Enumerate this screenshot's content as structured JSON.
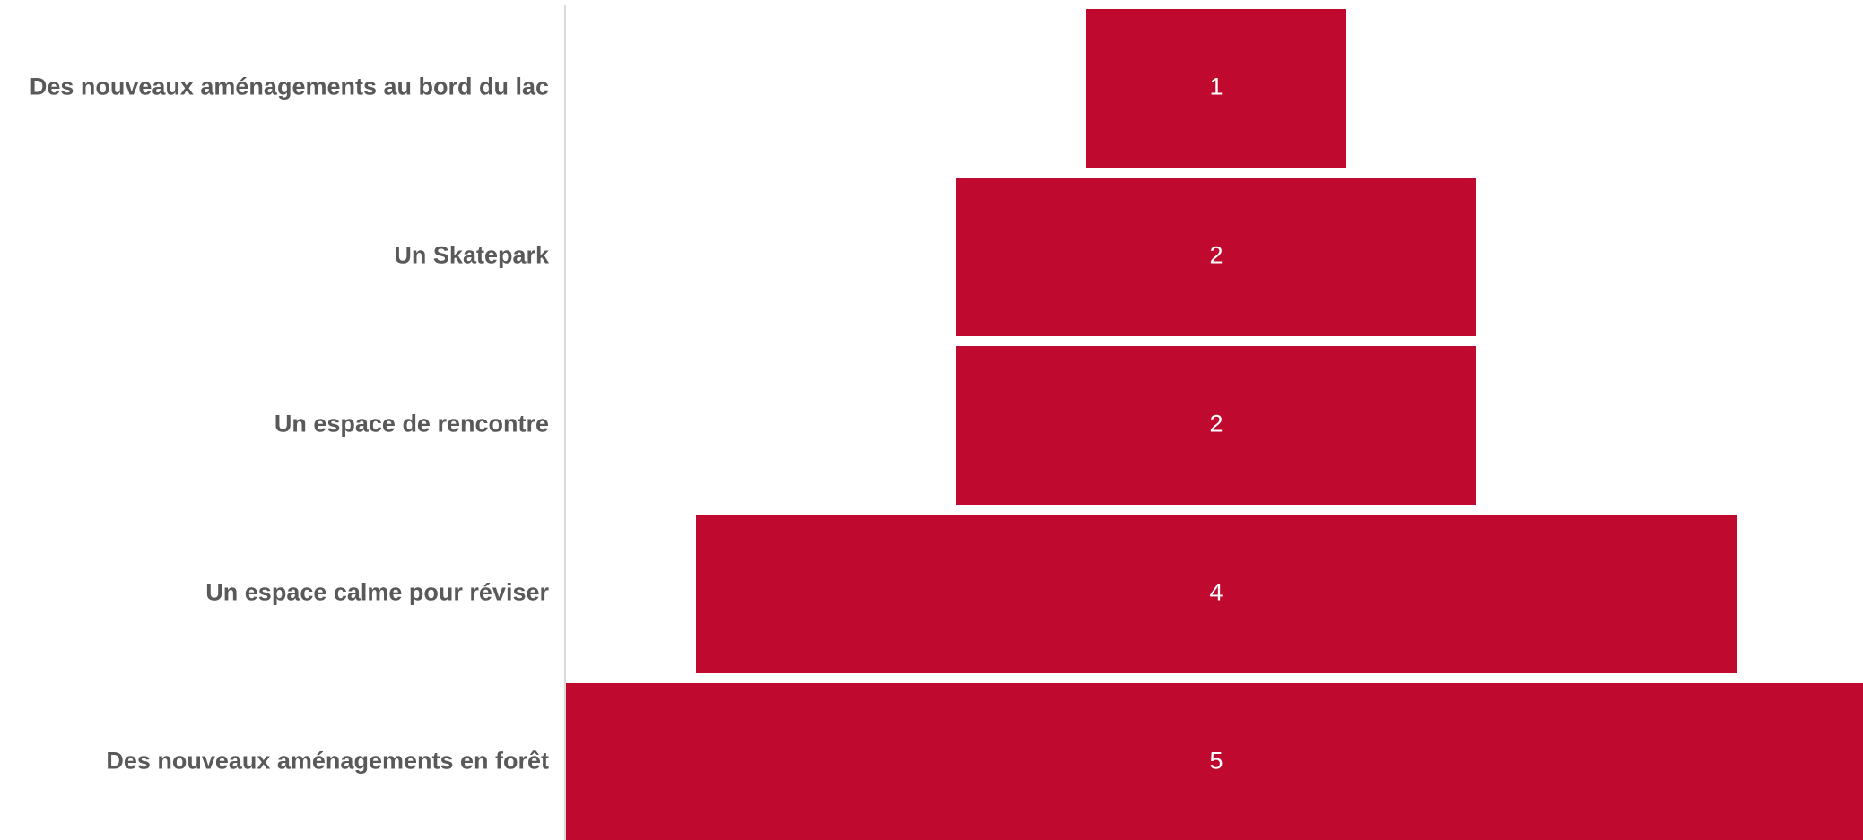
{
  "chart_data": {
    "type": "bar",
    "subtype": "funnel",
    "title": "",
    "xlabel": "",
    "ylabel": "",
    "categories": [
      "Des nouveaux aménagements au bord du lac",
      "Un Skatepark",
      "Un espace de rencontre",
      "Un espace calme pour réviser",
      "Des nouveaux aménagements en forêt"
    ],
    "values": [
      1,
      2,
      2,
      4,
      5
    ],
    "data_labels": [
      "1",
      "2",
      "2",
      "4",
      "5"
    ],
    "bar_color": "#C0092F",
    "axis_color": "#D9D9D9",
    "label_color": "#595959",
    "value_label_color": "#FFFFFF",
    "grid": false,
    "legend": "none"
  }
}
